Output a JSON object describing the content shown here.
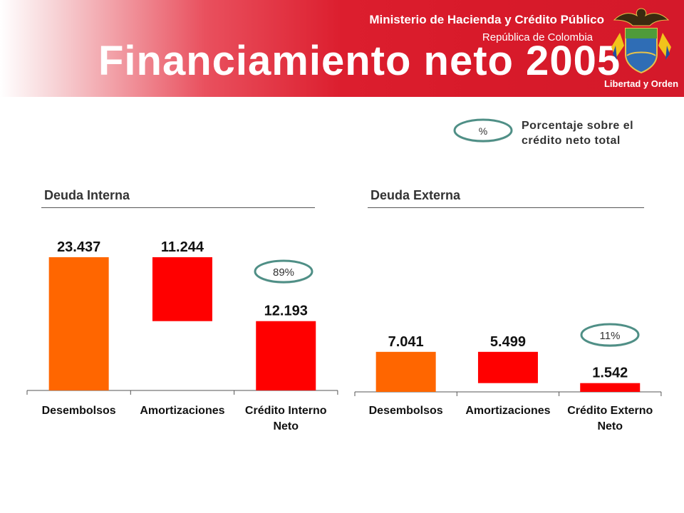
{
  "header": {
    "ministry": "Ministerio de Hacienda y Crédito Público",
    "republic": "República de Colombia",
    "title": "Financiamiento neto 2005",
    "emblem_motto": "Libertad y Orden"
  },
  "legend": {
    "symbol": "%",
    "text_line1": "Porcentaje sobre el",
    "text_line2": "crédito neto total"
  },
  "sections": {
    "internal": "Deuda Interna",
    "external": "Deuda Externa"
  },
  "colors": {
    "header_red": "#d81a2a",
    "disbursement_orange": "#ff6600",
    "red_bar": "#ff0000",
    "pill_border": "#4f8f86"
  },
  "chart_data": [
    {
      "type": "bar",
      "subtype": "waterfall",
      "title": "Deuda Interna",
      "categories": [
        "Desembolsos",
        "Amortizaciones",
        "Crédito Interno Neto"
      ],
      "values": [
        23437,
        11244,
        12193
      ],
      "value_labels": [
        "23.437",
        "11.244",
        "12.193"
      ],
      "bar_ranges": [
        [
          0,
          23437
        ],
        [
          12193,
          23437
        ],
        [
          0,
          12193
        ]
      ],
      "share_of_total_net_credit": "89%",
      "ylim": [
        0,
        26000
      ]
    },
    {
      "type": "bar",
      "subtype": "waterfall",
      "title": "Deuda Externa",
      "categories": [
        "Desembolsos",
        "Amortizaciones",
        "Crédito Externo Neto"
      ],
      "values": [
        7041,
        5499,
        1542
      ],
      "value_labels": [
        "7.041",
        "5.499",
        "1.542"
      ],
      "bar_ranges": [
        [
          0,
          7041
        ],
        [
          1542,
          7041
        ],
        [
          0,
          1542
        ]
      ],
      "share_of_total_net_credit": "11%",
      "ylim": [
        0,
        26000
      ]
    }
  ]
}
